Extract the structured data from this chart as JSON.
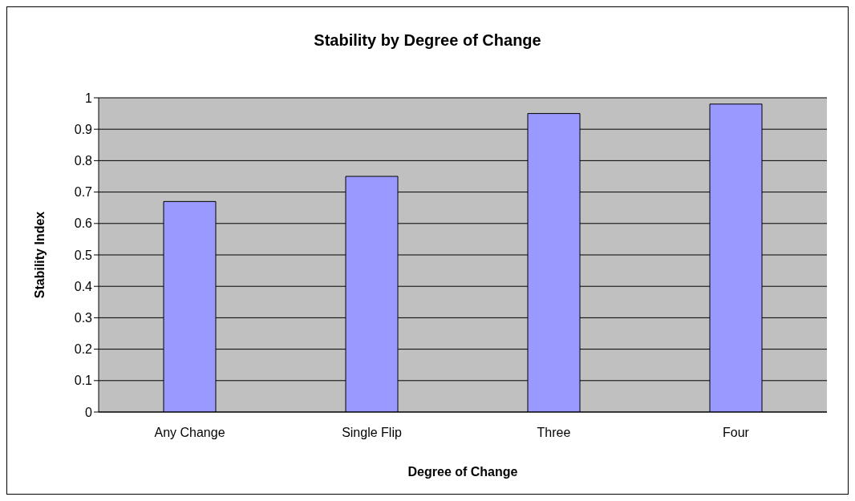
{
  "chart_data": {
    "type": "bar",
    "title": "Stability by Degree of Change",
    "xlabel": "Degree of Change",
    "ylabel": "Stability Index",
    "categories": [
      "Any Change",
      "Single Flip",
      "Three",
      "Four"
    ],
    "values": [
      0.67,
      0.75,
      0.95,
      0.98
    ],
    "color": "#9999ff",
    "ylim": [
      0,
      1
    ],
    "yticks": [
      0,
      0.1,
      0.2,
      0.3,
      0.4,
      0.5,
      0.6,
      0.7,
      0.8,
      0.9,
      1
    ],
    "grid": "y",
    "legend": false
  }
}
